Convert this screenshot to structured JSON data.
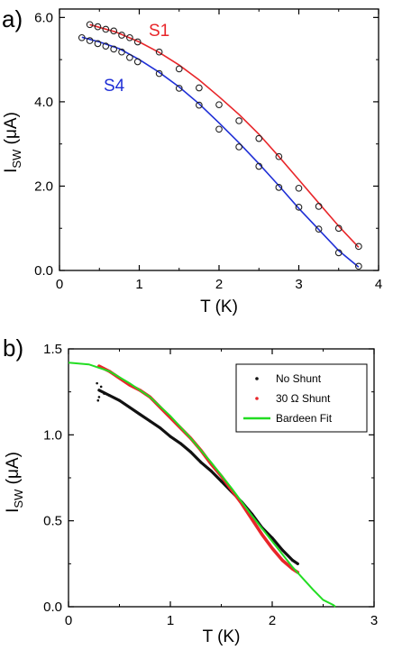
{
  "chart_data": [
    {
      "type": "scatter",
      "panel_label": "a)",
      "xlabel_main": "T (K)",
      "ylabel_main": "I",
      "ylabel_sub": "SW",
      "ylabel_unit": " (μA)",
      "xlim": [
        0,
        4
      ],
      "ylim": [
        0,
        6.2
      ],
      "xticks": [
        0,
        1,
        2,
        3,
        4
      ],
      "xtick_labels": [
        "0",
        "1",
        "2",
        "3",
        "4"
      ],
      "yticks": [
        0,
        2,
        4,
        6
      ],
      "ytick_labels": [
        "0.0",
        "2.0",
        "4.0",
        "6.0"
      ],
      "grid": false,
      "series": [
        {
          "name": "S1",
          "color": "#e8262a",
          "fit_color": "#e8262a",
          "marker_color": "#222222",
          "marker": "open-circle",
          "x": [
            0.38,
            0.48,
            0.58,
            0.68,
            0.78,
            0.88,
            0.98,
            1.25,
            1.5,
            1.75,
            2.0,
            2.25,
            2.5,
            2.75,
            3.0,
            3.25,
            3.5,
            3.75
          ],
          "y": [
            5.83,
            5.78,
            5.72,
            5.68,
            5.58,
            5.52,
            5.42,
            5.18,
            4.78,
            4.33,
            3.93,
            3.55,
            3.13,
            2.7,
            1.95,
            1.52,
            1.0,
            0.57
          ],
          "fit_x": [
            0.38,
            0.7,
            1.0,
            1.25,
            1.5,
            1.75,
            2.0,
            2.25,
            2.5,
            2.75,
            3.0,
            3.25,
            3.5,
            3.75
          ],
          "fit_y": [
            5.83,
            5.66,
            5.42,
            5.17,
            4.87,
            4.52,
            4.12,
            3.7,
            3.23,
            2.7,
            2.15,
            1.6,
            1.05,
            0.55
          ]
        },
        {
          "name": "S4",
          "color": "#1f2fd6",
          "fit_color": "#1f2fd6",
          "marker_color": "#222222",
          "marker": "open-circle",
          "x": [
            0.28,
            0.38,
            0.48,
            0.58,
            0.68,
            0.78,
            0.88,
            0.98,
            1.25,
            1.5,
            1.75,
            2.0,
            2.25,
            2.5,
            2.75,
            3.0,
            3.25,
            3.5,
            3.75
          ],
          "y": [
            5.52,
            5.45,
            5.38,
            5.32,
            5.25,
            5.18,
            5.05,
            4.95,
            4.67,
            4.32,
            3.92,
            3.35,
            2.93,
            2.47,
            1.97,
            1.5,
            0.98,
            0.42,
            0.1
          ],
          "fit_x": [
            0.28,
            0.5,
            0.75,
            1.0,
            1.25,
            1.5,
            1.75,
            2.0,
            2.25,
            2.5,
            2.75,
            3.0,
            3.25,
            3.5,
            3.75
          ],
          "fit_y": [
            5.53,
            5.42,
            5.26,
            5.0,
            4.7,
            4.35,
            3.95,
            3.5,
            3.03,
            2.53,
            2.01,
            1.47,
            0.97,
            0.47,
            0.08
          ]
        }
      ]
    },
    {
      "type": "scatter",
      "panel_label": "b)",
      "xlabel_main": "T (K)",
      "ylabel_main": "I",
      "ylabel_sub": "SW",
      "ylabel_unit": " (μA)",
      "xlim": [
        0,
        3
      ],
      "ylim": [
        0,
        1.5
      ],
      "xticks": [
        0,
        1,
        2,
        3
      ],
      "xtick_labels": [
        "0",
        "1",
        "2",
        "3"
      ],
      "yticks": [
        0,
        0.5,
        1.0,
        1.5
      ],
      "ytick_labels": [
        "0.0",
        "0.5",
        "1.0",
        "1.5"
      ],
      "grid": false,
      "legend_position": "top-right",
      "series": [
        {
          "name": "No Shunt",
          "color": "#111111",
          "marker": "dense-dots",
          "x": [
            0.3,
            0.4,
            0.5,
            0.6,
            0.7,
            0.8,
            0.9,
            1.0,
            1.1,
            1.2,
            1.3,
            1.4,
            1.5,
            1.6,
            1.7,
            1.8,
            1.9,
            2.0,
            2.1,
            2.2,
            2.25
          ],
          "y": [
            1.26,
            1.23,
            1.2,
            1.16,
            1.12,
            1.08,
            1.04,
            0.99,
            0.95,
            0.9,
            0.84,
            0.79,
            0.73,
            0.67,
            0.61,
            0.54,
            0.46,
            0.4,
            0.33,
            0.27,
            0.25
          ]
        },
        {
          "name": "30 Ω Shunt",
          "color": "#e8262a",
          "marker": "dense-dots",
          "x": [
            0.3,
            0.4,
            0.5,
            0.6,
            0.7,
            0.8,
            0.9,
            1.0,
            1.1,
            1.2,
            1.3,
            1.4,
            1.5,
            1.6,
            1.7,
            1.8,
            1.9,
            2.0,
            2.1,
            2.2,
            2.25
          ],
          "y": [
            1.4,
            1.37,
            1.33,
            1.29,
            1.26,
            1.22,
            1.16,
            1.1,
            1.04,
            0.98,
            0.91,
            0.83,
            0.76,
            0.68,
            0.6,
            0.51,
            0.42,
            0.34,
            0.27,
            0.22,
            0.2
          ]
        },
        {
          "name": "Bardeen Fit",
          "color": "#22dd22",
          "marker": "line",
          "x": [
            0.0,
            0.2,
            0.4,
            0.6,
            0.8,
            1.0,
            1.2,
            1.4,
            1.6,
            1.8,
            2.0,
            2.2,
            2.4,
            2.5,
            2.6,
            2.62
          ],
          "y": [
            1.42,
            1.41,
            1.37,
            1.3,
            1.22,
            1.11,
            0.98,
            0.84,
            0.69,
            0.53,
            0.38,
            0.23,
            0.1,
            0.04,
            0.01,
            0.0
          ]
        }
      ]
    }
  ]
}
